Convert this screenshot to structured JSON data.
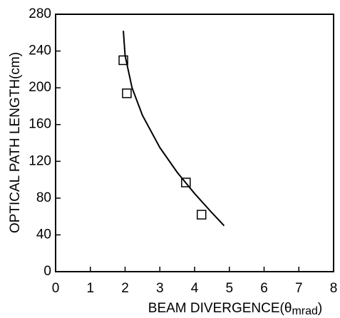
{
  "chart_data": {
    "type": "scatter",
    "ylabel": "OPTICAL PATH LENGTH(cm)",
    "xlabel_parts": [
      "BEAM DIVERGENCE(θ",
      "mrad",
      ")"
    ],
    "xlim": [
      0,
      8
    ],
    "xticks": [
      0,
      1,
      2,
      3,
      4,
      5,
      6,
      7,
      8
    ],
    "ylim": [
      0,
      280
    ],
    "yticks": [
      0,
      40,
      80,
      120,
      160,
      200,
      240,
      280
    ],
    "color": "#000000",
    "series": [
      {
        "type": "scatter",
        "x": [
          1.95,
          2.05,
          3.75,
          4.2
        ],
        "values": [
          230,
          194,
          97,
          62
        ]
      },
      {
        "type": "line",
        "x": [
          1.95,
          2.0,
          2.2,
          2.5,
          3.0,
          3.5,
          4.0,
          4.5,
          4.85
        ],
        "values": [
          262,
          235,
          200,
          170,
          135,
          108,
          85,
          64,
          50
        ]
      }
    ]
  }
}
